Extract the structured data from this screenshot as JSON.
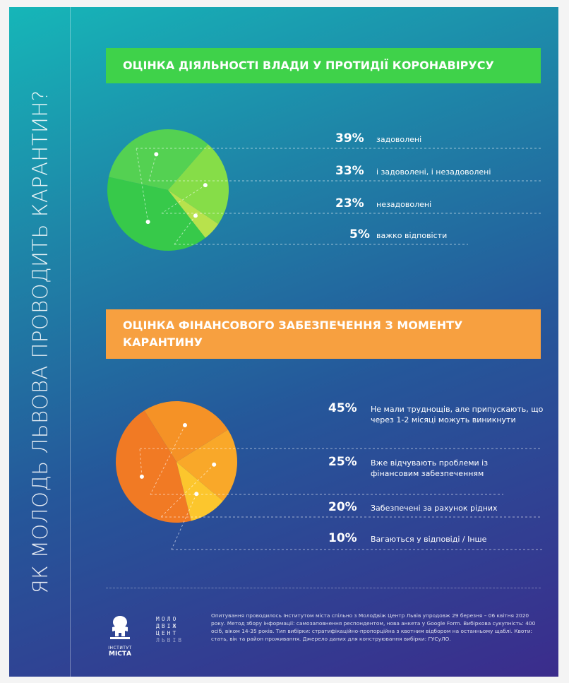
{
  "side_title": "ЯК МОЛОДЬ ЛЬВОВА ПРОВОДИТЬ КАРАНТИН?",
  "chart_data": [
    {
      "type": "pie",
      "title": "ОЦІНКА ДІЯЛЬНОСТІ ВЛАДИ У ПРОТИДІЇ КОРОНАВІРУСУ",
      "slices": [
        {
          "value": 39,
          "label": "39%",
          "text": "задоволені",
          "color": "#37c94a"
        },
        {
          "value": 33,
          "label": "33%",
          "text": "і задоволені, і незадоволені",
          "color": "#54d152"
        },
        {
          "value": 23,
          "label": "23%",
          "text": "незадоволені",
          "color": "#86dd48"
        },
        {
          "value": 5,
          "label": "5%",
          "text": "важко відповісти",
          "color": "#b8e24c"
        }
      ]
    },
    {
      "type": "pie",
      "title": "ОЦІНКА ФІНАНСОВОГО ЗАБЕЗПЕЧЕННЯ З МОМЕНТУ КАРАНТИНУ",
      "slices": [
        {
          "value": 45,
          "label": "45%",
          "text": "Не мали труднощів, але припускають, що через 1-2 місяці можуть виникнути",
          "color": "#f17a24"
        },
        {
          "value": 25,
          "label": "25%",
          "text": "Вже відчувають проблеми із фінансовим забезпеченням",
          "color": "#f59226"
        },
        {
          "value": 20,
          "label": "20%",
          "text": "Забезпечені за рахунок рідних",
          "color": "#f9a829"
        },
        {
          "value": 10,
          "label": "10%",
          "text": "Вагаються у відповіді / Інше",
          "color": "#fcc62d"
        }
      ]
    }
  ],
  "footer": {
    "logo1_sub1": "ІНСТИТУТ",
    "logo1_sub2": "МІСТА",
    "logo2_rows": [
      "МОЛО",
      "ДВІЖ",
      "ЦЕНТ",
      "ЛЬВІВ"
    ],
    "note": "Опитування проводилось Інститутом міста спільно з МолоДвіж Центр Львів упродовж 29 березня – 06 квітня 2020 року. Метод збору інформації: самозаповнення респондентом, нова анкета у Google Form. Вибіркова сукупність: 400 осіб, віком 14-35 років. Тип вибірки: стратифікаційно-пропорційна з квотним відбором на останньому щаблі. Квоти: стать, вік та район проживання. Джерело даних для конструювання вибірки: ГУСуЛО."
  }
}
